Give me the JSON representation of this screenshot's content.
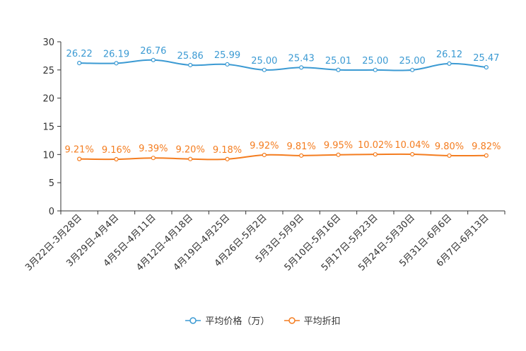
{
  "chart_data": {
    "type": "line",
    "title": "",
    "xlabel": "",
    "ylabel": "",
    "ylim": [
      0,
      30
    ],
    "yticks": [
      0,
      5,
      10,
      15,
      20,
      25,
      30
    ],
    "categories": [
      "3月22日-3月28日",
      "3月29日-4月4日",
      "4月5日-4月11日",
      "4月12日-4月18日",
      "4月19日-4月25日",
      "4月26日-5月2日",
      "5月3日-5月9日",
      "5月10日-5月16日",
      "5月17日-5月23日",
      "5月24日-5月30日",
      "5月31日-6月6日",
      "6月7日-6月13日"
    ],
    "series": [
      {
        "name": "平均价格（万）",
        "color": "#3b9ad3",
        "values": [
          26.22,
          26.19,
          26.76,
          25.86,
          25.99,
          25.0,
          25.43,
          25.01,
          25.0,
          25.0,
          26.12,
          25.47
        ],
        "labels": [
          "26.22",
          "26.19",
          "26.76",
          "25.86",
          "25.99",
          "25.00",
          "25.43",
          "25.01",
          "25.00",
          "25.00",
          "26.12",
          "25.47"
        ]
      },
      {
        "name": "平均折扣",
        "color": "#f47d20",
        "values": [
          9.21,
          9.16,
          9.39,
          9.2,
          9.18,
          9.92,
          9.81,
          9.95,
          10.02,
          10.04,
          9.8,
          9.82
        ],
        "labels": [
          "9.21%",
          "9.16%",
          "9.39%",
          "9.20%",
          "9.18%",
          "9.92%",
          "9.81%",
          "9.95%",
          "10.02%",
          "10.04%",
          "9.80%",
          "9.82%"
        ]
      }
    ],
    "legend_position": "bottom-center"
  }
}
